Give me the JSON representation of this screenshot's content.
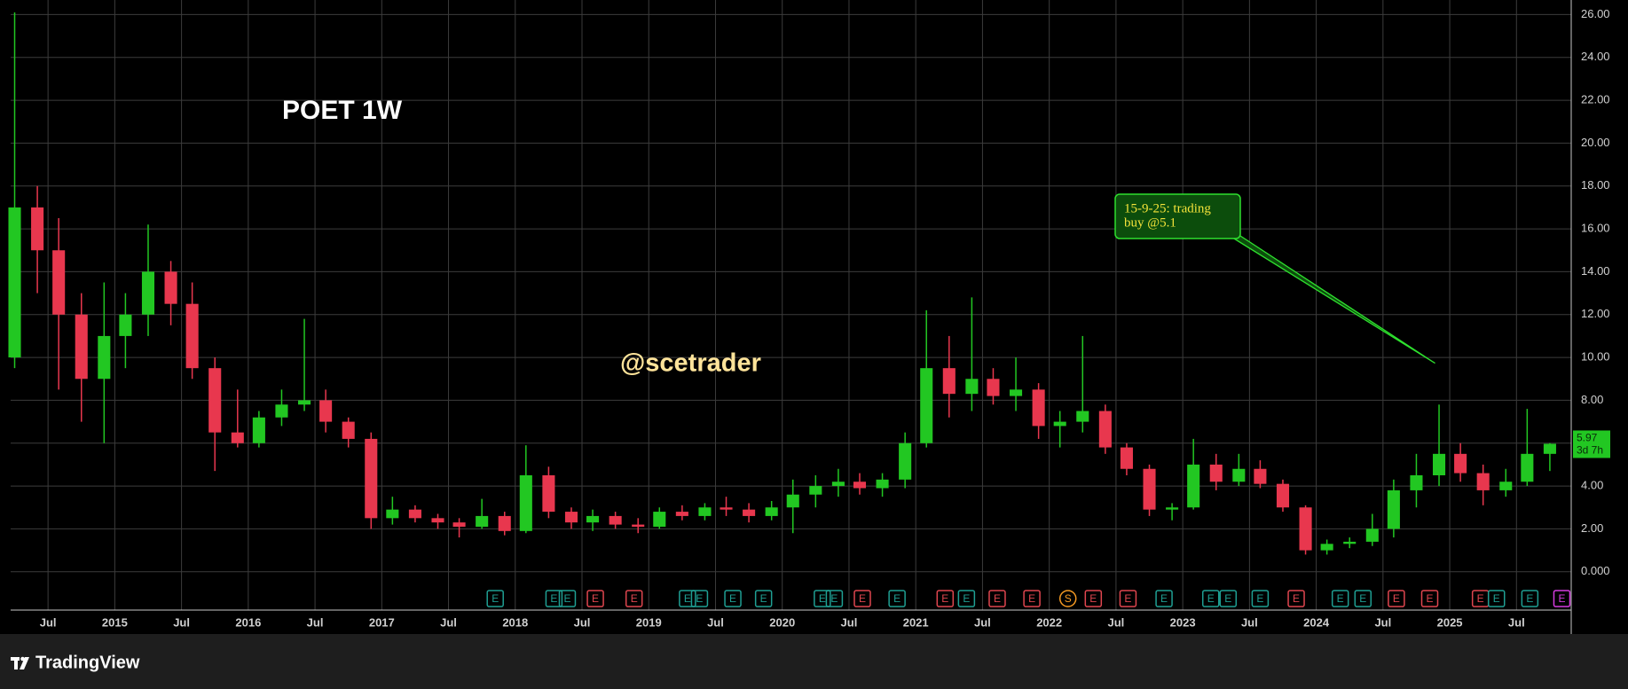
{
  "chart_data": {
    "type": "candlestick",
    "title": "POET 1W",
    "watermark": "@scetrader",
    "brand": "TradingView",
    "countdown": "3d 7h",
    "up_color": "#22c722",
    "down_color": "#e8374e",
    "grid": true,
    "xlim": [
      2014.22,
      2025.91
    ],
    "ylim": [
      -1.79,
      26.68
    ],
    "xticks": [
      {
        "value": 2014.5,
        "label": "Jul"
      },
      2015,
      {
        "value": 2015.5,
        "label": "Jul"
      },
      2016,
      {
        "value": 2016.5,
        "label": "Jul"
      },
      2017,
      {
        "value": 2017.5,
        "label": "Jul"
      },
      2018,
      {
        "value": 2018.5,
        "label": "Jul"
      },
      2019,
      {
        "value": 2019.5,
        "label": "Jul"
      },
      2020,
      {
        "value": 2020.5,
        "label": "Jul"
      },
      2021,
      {
        "value": 2021.5,
        "label": "Jul"
      },
      2022,
      {
        "value": 2022.5,
        "label": "Jul"
      },
      2023,
      {
        "value": 2023.5,
        "label": "Jul"
      },
      2024,
      {
        "value": 2024.5,
        "label": "Jul"
      },
      2025,
      {
        "value": 2025.5,
        "label": "Jul"
      }
    ],
    "yticks": [
      {
        "value": 0,
        "label": "0.000"
      },
      {
        "value": 2,
        "label": "2.00"
      },
      {
        "value": 4,
        "label": "4.00"
      },
      {
        "value": 6,
        "label": "6.00"
      },
      {
        "value": 8,
        "label": "8.00"
      },
      {
        "value": 10,
        "label": "10.00"
      },
      {
        "value": 12,
        "label": "12.00"
      },
      {
        "value": 14,
        "label": "14.00"
      },
      {
        "value": 16,
        "label": "16.00"
      },
      {
        "value": 18,
        "label": "18.00"
      },
      {
        "value": 20,
        "label": "20.00"
      },
      {
        "value": 22,
        "label": "22.00"
      },
      {
        "value": 24,
        "label": "24.00"
      },
      {
        "value": 26,
        "label": "26.00"
      }
    ],
    "x": [
      2014.25,
      2014.42,
      2014.58,
      2014.75,
      2014.92,
      2015.08,
      2015.25,
      2015.42,
      2015.58,
      2015.75,
      2015.92,
      2016.08,
      2016.25,
      2016.42,
      2016.58,
      2016.75,
      2016.92,
      2017.08,
      2017.25,
      2017.42,
      2017.58,
      2017.75,
      2017.92,
      2018.08,
      2018.25,
      2018.42,
      2018.58,
      2018.75,
      2018.92,
      2019.08,
      2019.25,
      2019.42,
      2019.58,
      2019.75,
      2019.92,
      2020.08,
      2020.25,
      2020.42,
      2020.58,
      2020.75,
      2020.92,
      2021.08,
      2021.25,
      2021.42,
      2021.58,
      2021.75,
      2021.92,
      2022.08,
      2022.25,
      2022.42,
      2022.58,
      2022.75,
      2022.92,
      2023.08,
      2023.25,
      2023.42,
      2023.58,
      2023.75,
      2023.92,
      2024.08,
      2024.25,
      2024.42,
      2024.58,
      2024.75,
      2024.92,
      2025.08,
      2025.25,
      2025.42,
      2025.58,
      2025.75
    ],
    "open": [
      10,
      17,
      15,
      12,
      9,
      11,
      12,
      14,
      12.5,
      9.5,
      6.5,
      6,
      7.2,
      7.8,
      8,
      7,
      6.2,
      2.5,
      2.9,
      2.5,
      2.3,
      2.1,
      2.6,
      1.9,
      4.5,
      2.8,
      2.3,
      2.6,
      2.2,
      2.1,
      2.8,
      2.6,
      3.0,
      2.9,
      2.6,
      3.0,
      3.6,
      4.0,
      4.2,
      3.9,
      4.3,
      6.0,
      9.5,
      8.3,
      9.0,
      8.2,
      8.5,
      6.8,
      7.0,
      7.5,
      5.8,
      4.8,
      2.9,
      3.0,
      5.0,
      4.2,
      4.8,
      4.1,
      3.0,
      1.0,
      1.3,
      1.4,
      2.0,
      3.8,
      4.5,
      5.5,
      4.6,
      3.8,
      4.2,
      5.5
    ],
    "high": [
      26.1,
      18,
      16.5,
      13,
      13.5,
      13,
      16.2,
      14.5,
      13.5,
      10,
      8.5,
      7.5,
      8.5,
      11.8,
      8.5,
      7.2,
      6.5,
      3.5,
      3.1,
      2.7,
      2.5,
      3.4,
      2.8,
      5.9,
      4.9,
      3.0,
      2.9,
      2.8,
      2.5,
      3.0,
      3.1,
      3.2,
      3.5,
      3.2,
      3.3,
      4.3,
      4.5,
      4.8,
      4.6,
      4.6,
      6.5,
      12.2,
      11.0,
      12.8,
      9.5,
      10.0,
      8.8,
      7.5,
      11.0,
      7.8,
      6.0,
      5.0,
      3.2,
      6.2,
      5.5,
      5.5,
      5.2,
      4.3,
      3.1,
      1.5,
      1.6,
      2.7,
      4.3,
      5.5,
      7.8,
      6.0,
      5.0,
      4.8,
      7.6,
      6.0
    ],
    "low": [
      9.5,
      13,
      8.5,
      7,
      6,
      9.5,
      11,
      11.5,
      9,
      4.7,
      5.8,
      5.8,
      6.8,
      7.5,
      6.5,
      5.8,
      2.0,
      2.2,
      2.3,
      2.0,
      1.6,
      2.0,
      1.7,
      1.8,
      2.5,
      2.0,
      1.9,
      2.0,
      1.8,
      2.0,
      2.4,
      2.4,
      2.6,
      2.3,
      2.4,
      1.8,
      3.0,
      3.5,
      3.6,
      3.5,
      3.9,
      5.8,
      7.2,
      7.5,
      7.8,
      7.5,
      6.2,
      5.8,
      6.5,
      5.5,
      4.5,
      2.6,
      2.4,
      2.9,
      3.8,
      4.0,
      3.9,
      2.8,
      0.8,
      0.8,
      1.1,
      1.2,
      1.6,
      3.0,
      4.0,
      4.2,
      3.1,
      3.5,
      4.0,
      4.7
    ],
    "close": [
      17,
      15,
      12,
      9,
      11,
      12,
      14,
      12.5,
      9.5,
      6.5,
      6,
      7.2,
      7.8,
      8,
      7,
      6.2,
      2.5,
      2.9,
      2.5,
      2.3,
      2.1,
      2.6,
      1.9,
      4.5,
      2.8,
      2.3,
      2.6,
      2.2,
      2.1,
      2.8,
      2.6,
      3.0,
      2.9,
      2.6,
      3.0,
      3.6,
      4.0,
      4.2,
      3.9,
      4.3,
      6.0,
      9.5,
      8.3,
      9.0,
      8.2,
      8.5,
      6.8,
      7.0,
      7.5,
      5.8,
      4.8,
      2.9,
      3.0,
      5.0,
      4.2,
      4.8,
      4.1,
      3.0,
      1.0,
      1.3,
      1.4,
      2.0,
      3.8,
      4.5,
      5.5,
      4.6,
      3.8,
      4.2,
      5.5,
      5.97
    ],
    "events": [
      {
        "x": 2017.85,
        "label": "E",
        "color": "#1f9f93"
      },
      {
        "x": 2018.29,
        "label": "E",
        "color": "#1f9f93"
      },
      {
        "x": 2018.39,
        "label": "E",
        "color": "#1f9f93"
      },
      {
        "x": 2018.6,
        "label": "E",
        "color": "#e0464f"
      },
      {
        "x": 2018.89,
        "label": "E",
        "color": "#e0464f"
      },
      {
        "x": 2019.29,
        "label": "E",
        "color": "#1f9f93"
      },
      {
        "x": 2019.38,
        "label": "E",
        "color": "#1f9f93"
      },
      {
        "x": 2019.63,
        "label": "E",
        "color": "#1f9f93"
      },
      {
        "x": 2019.86,
        "label": "E",
        "color": "#1f9f93"
      },
      {
        "x": 2020.3,
        "label": "E",
        "color": "#1f9f93"
      },
      {
        "x": 2020.39,
        "label": "E",
        "color": "#1f9f93"
      },
      {
        "x": 2020.6,
        "label": "E",
        "color": "#e0464f"
      },
      {
        "x": 2020.86,
        "label": "E",
        "color": "#1f9f93"
      },
      {
        "x": 2021.22,
        "label": "E",
        "color": "#e0464f"
      },
      {
        "x": 2021.38,
        "label": "E",
        "color": "#1f9f93"
      },
      {
        "x": 2021.61,
        "label": "E",
        "color": "#e0464f"
      },
      {
        "x": 2021.87,
        "label": "E",
        "color": "#e0464f"
      },
      {
        "x": 2022.14,
        "label": "S",
        "color": "#f59a23"
      },
      {
        "x": 2022.33,
        "label": "E",
        "color": "#e0464f"
      },
      {
        "x": 2022.59,
        "label": "E",
        "color": "#e0464f"
      },
      {
        "x": 2022.86,
        "label": "E",
        "color": "#1f9f93"
      },
      {
        "x": 2023.21,
        "label": "E",
        "color": "#1f9f93"
      },
      {
        "x": 2023.34,
        "label": "E",
        "color": "#1f9f93"
      },
      {
        "x": 2023.58,
        "label": "E",
        "color": "#1f9f93"
      },
      {
        "x": 2023.85,
        "label": "E",
        "color": "#e0464f"
      },
      {
        "x": 2024.18,
        "label": "E",
        "color": "#1f9f93"
      },
      {
        "x": 2024.35,
        "label": "E",
        "color": "#1f9f93"
      },
      {
        "x": 2024.6,
        "label": "E",
        "color": "#e0464f"
      },
      {
        "x": 2024.85,
        "label": "E",
        "color": "#e0464f"
      },
      {
        "x": 2025.23,
        "label": "E",
        "color": "#e0464f"
      },
      {
        "x": 2025.35,
        "label": "E",
        "color": "#1f9f93"
      },
      {
        "x": 2025.6,
        "label": "E",
        "color": "#1f9f93"
      },
      {
        "x": 2025.84,
        "label": "E",
        "color": "#d63ce0"
      }
    ],
    "callout": {
      "lines": [
        "15-9-25: trading",
        "buy @5.1"
      ],
      "x": 2024.89,
      "y": 9.73
    }
  }
}
